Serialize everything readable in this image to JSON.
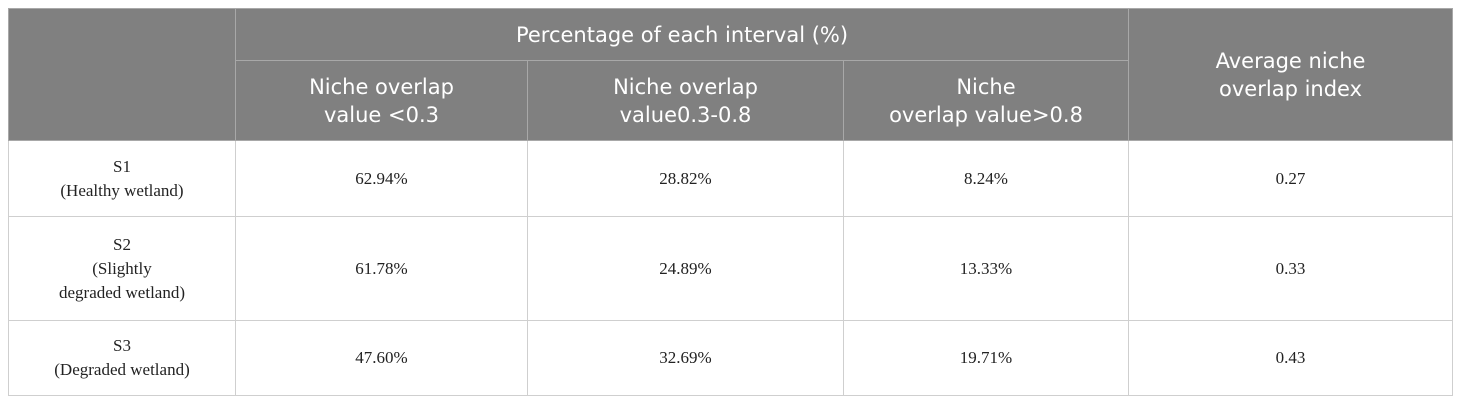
{
  "table": {
    "group_header": "Percentage of each interval (%)",
    "columns": [
      [
        "Niche overlap",
        "value <0.3"
      ],
      [
        "Niche overlap",
        "value0.3-0.8"
      ],
      [
        "Niche",
        "overlap value>0.8"
      ]
    ],
    "last_column": [
      "Average niche",
      "overlap index"
    ],
    "rows": [
      {
        "label": [
          "S1",
          "(Healthy wetland)"
        ],
        "cells": [
          "62.94%",
          "28.82%",
          "8.24%",
          "0.27"
        ]
      },
      {
        "label": [
          "S2",
          "(Slightly",
          "degraded wetland)"
        ],
        "cells": [
          "61.78%",
          "24.89%",
          "13.33%",
          "0.33"
        ]
      },
      {
        "label": [
          "S3",
          "(Degraded wetland)"
        ],
        "cells": [
          "47.60%",
          "32.69%",
          "19.71%",
          "0.43"
        ]
      }
    ]
  }
}
